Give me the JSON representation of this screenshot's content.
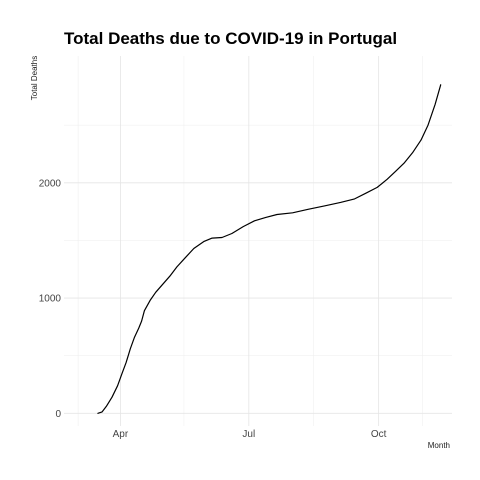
{
  "chart_data": {
    "type": "line",
    "title": "Total Deaths due to COVID-19 in Portugal",
    "xlabel": "Month",
    "ylabel": "Total Deaths",
    "grid": true,
    "legend": "none",
    "line_color": "#000000",
    "grid_color": "#e5e5e5",
    "xlim": [
      "2020-02-21",
      "2020-11-22"
    ],
    "ylim": [
      -110,
      3100
    ],
    "x_ticks": [
      {
        "label": "Apr",
        "value": "2020-04-01"
      },
      {
        "label": "Jul",
        "value": "2020-07-01"
      },
      {
        "label": "Oct",
        "value": "2020-10-01"
      }
    ],
    "x_minor_ticks": [
      "2020-03-02",
      "2020-05-16",
      "2020-08-16",
      "2020-11-01"
    ],
    "y_ticks": [
      {
        "label": "0",
        "value": 0
      },
      {
        "label": "1000",
        "value": 1000
      },
      {
        "label": "2000",
        "value": 2000
      }
    ],
    "y_minor_ticks": [
      500,
      1500,
      2500
    ],
    "series": [
      {
        "x": [
          "2020-03-16",
          "2020-03-19",
          "2020-03-22",
          "2020-03-26",
          "2020-03-30",
          "2020-04-02",
          "2020-04-05",
          "2020-04-08",
          "2020-04-11",
          "2020-04-14",
          "2020-04-16",
          "2020-04-18",
          "2020-04-22",
          "2020-04-26",
          "2020-05-01",
          "2020-05-06",
          "2020-05-11",
          "2020-05-17",
          "2020-05-23",
          "2020-05-30",
          "2020-06-05",
          "2020-06-12",
          "2020-06-19",
          "2020-06-27",
          "2020-07-05",
          "2020-07-13",
          "2020-07-21",
          "2020-08-01",
          "2020-08-12",
          "2020-08-24",
          "2020-09-04",
          "2020-09-14",
          "2020-09-22",
          "2020-09-30",
          "2020-10-07",
          "2020-10-13",
          "2020-10-19",
          "2020-10-25",
          "2020-10-31",
          "2020-11-05",
          "2020-11-10",
          "2020-11-14"
        ],
        "y": [
          0,
          12,
          60,
          140,
          240,
          340,
          440,
          560,
          660,
          740,
          800,
          890,
          980,
          1050,
          1120,
          1190,
          1270,
          1350,
          1430,
          1490,
          1520,
          1525,
          1560,
          1620,
          1670,
          1700,
          1725,
          1740,
          1770,
          1800,
          1830,
          1860,
          1910,
          1960,
          2030,
          2100,
          2170,
          2260,
          2370,
          2500,
          2680,
          2850
        ]
      }
    ]
  }
}
